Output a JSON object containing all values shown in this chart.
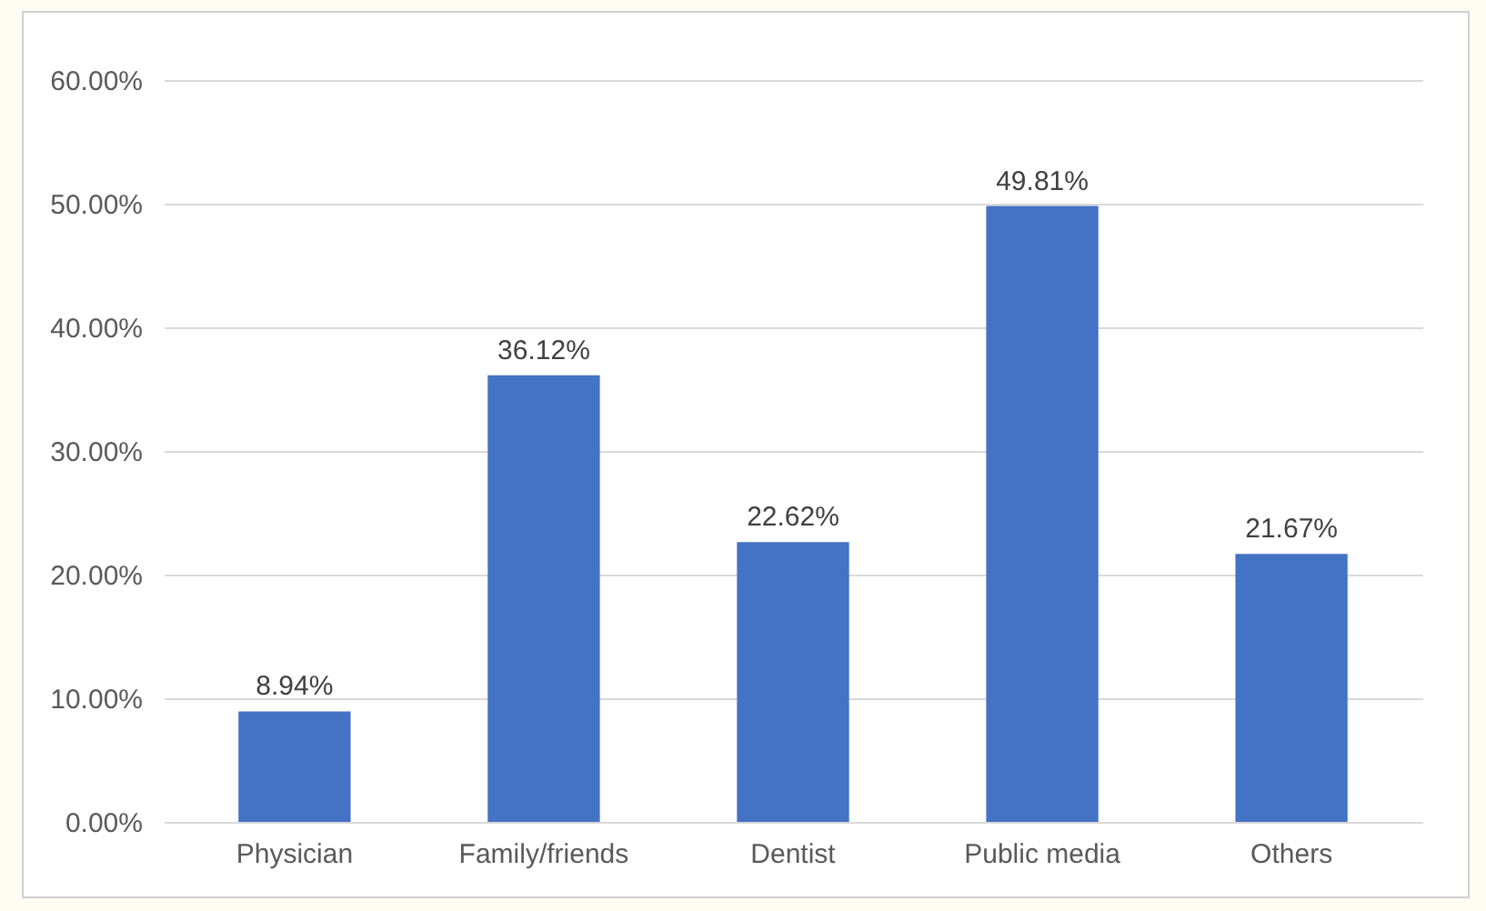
{
  "chart_data": {
    "type": "bar",
    "categories": [
      "Physician",
      "Family/friends",
      "Dentist",
      "Public media",
      "Others"
    ],
    "values": [
      8.94,
      36.12,
      22.62,
      49.81,
      21.67
    ],
    "value_labels": [
      "8.94%",
      "36.12%",
      "22.62%",
      "49.81%",
      "21.67%"
    ],
    "color": "#4472c4",
    "ylim": [
      0,
      60
    ],
    "yticks": [
      {
        "value": 0,
        "label": "0.00%"
      },
      {
        "value": 10,
        "label": "10.00%"
      },
      {
        "value": 20,
        "label": "20.00%"
      },
      {
        "value": 30,
        "label": "30.00%"
      },
      {
        "value": 40,
        "label": "40.00%"
      },
      {
        "value": 50,
        "label": "50.00%"
      },
      {
        "value": 60,
        "label": "60.00%"
      }
    ],
    "grid": "y"
  }
}
